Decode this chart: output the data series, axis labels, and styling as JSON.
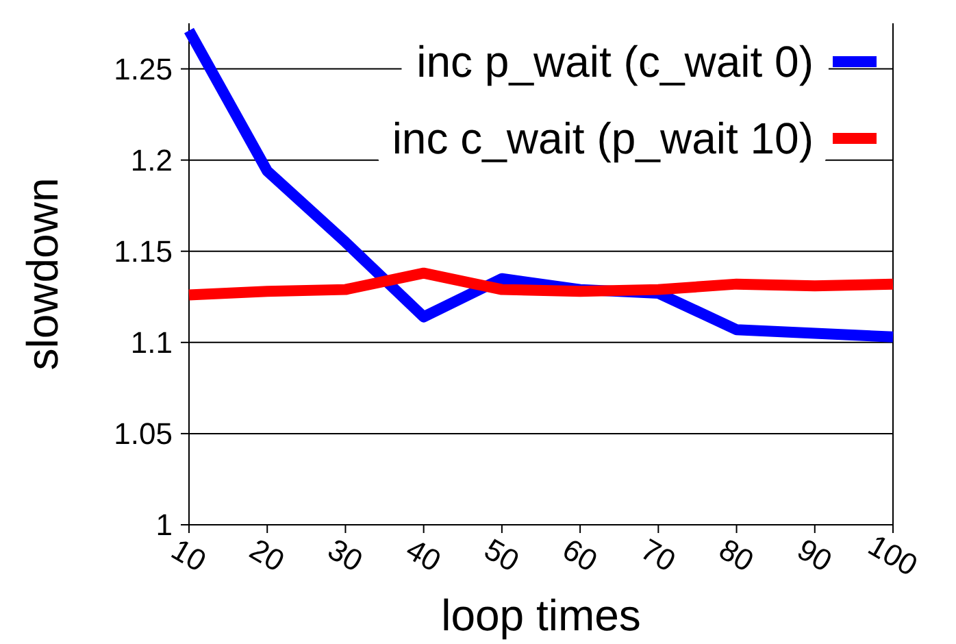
{
  "chart_data": {
    "type": "line",
    "xlabel": "loop times",
    "ylabel": "slowdown",
    "x": [
      10,
      20,
      30,
      40,
      50,
      60,
      70,
      80,
      90,
      100
    ],
    "series": [
      {
        "name": "inc p_wait (c_wait 0)",
        "color": "#0000ff",
        "values": [
          1.271,
          1.194,
          1.155,
          1.114,
          1.135,
          1.129,
          1.127,
          1.107,
          1.105,
          1.103
        ]
      },
      {
        "name": "inc c_wait (p_wait 10)",
        "color": "#ff0000",
        "values": [
          1.126,
          1.128,
          1.129,
          1.138,
          1.129,
          1.128,
          1.129,
          1.132,
          1.131,
          1.132
        ]
      }
    ],
    "xlim": [
      10,
      100
    ],
    "xticks": [
      10,
      20,
      30,
      40,
      50,
      60,
      70,
      80,
      90,
      100
    ],
    "ylim": [
      1,
      1.275
    ],
    "yticks": [
      1,
      1.05,
      1.1,
      1.15,
      1.2,
      1.25
    ],
    "grid": "y",
    "legend": "top right",
    "marker": "none",
    "line_style": "solid"
  }
}
